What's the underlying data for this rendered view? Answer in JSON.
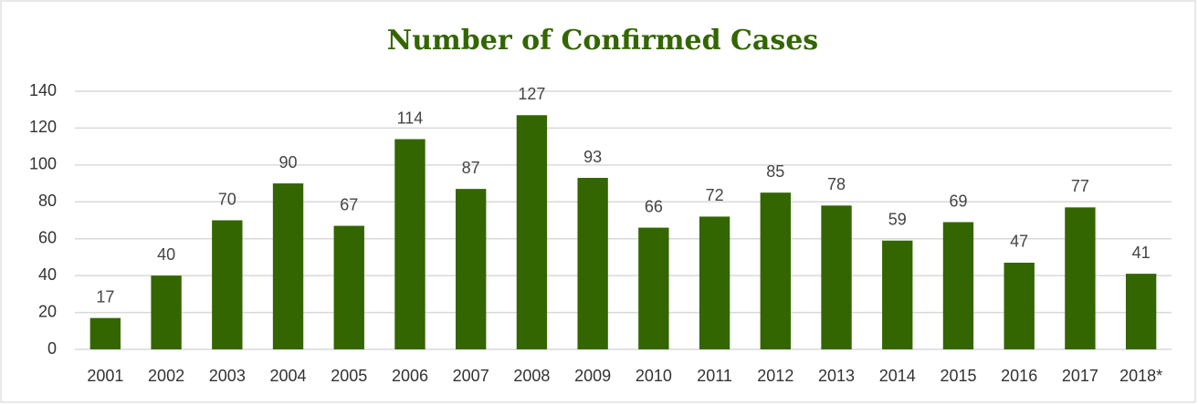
{
  "chart_data": {
    "type": "bar",
    "title": "Number of Confirmed Cases",
    "categories": [
      "2001",
      "2002",
      "2003",
      "2004",
      "2005",
      "2006",
      "2007",
      "2008",
      "2009",
      "2010",
      "2011",
      "2012",
      "2013",
      "2014",
      "2015",
      "2016",
      "2017",
      "2018*"
    ],
    "values": [
      17,
      40,
      70,
      90,
      67,
      114,
      87,
      127,
      93,
      66,
      72,
      85,
      78,
      59,
      69,
      47,
      77,
      41
    ],
    "color": "#336600",
    "ylim": [
      0,
      140
    ],
    "yticks": [
      0,
      20,
      40,
      60,
      80,
      100,
      120,
      140
    ],
    "grid": true
  }
}
